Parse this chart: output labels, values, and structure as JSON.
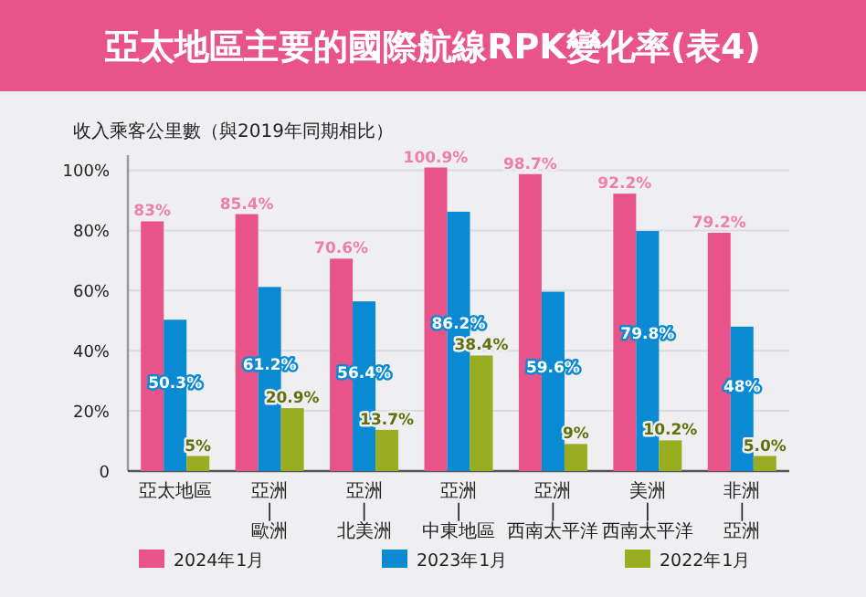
{
  "chart_data": {
    "type": "bar",
    "title": "亞太地區主要的國際航線RPK變化率(表4)",
    "ylabel": "收入乘客公里數（與2019年同期相比）",
    "categories": [
      "亞太地區",
      "亞洲\n|\n歐洲",
      "亞洲\n|\n北美洲",
      "亞洲\n|\n中東地區",
      "亞洲\n|\n西南太平洋",
      "美洲\n|\n西南太平洋",
      "非洲\n|\n亞洲"
    ],
    "series": [
      {
        "name": "2024年1月",
        "color": "#e8548a",
        "values": [
          83,
          85.4,
          70.6,
          100.9,
          98.7,
          92.2,
          79.2
        ],
        "value_labels": [
          "83%",
          "85.4%",
          "70.6%",
          "100.9%",
          "98.7%",
          "92.2%",
          "79.2%"
        ]
      },
      {
        "name": "2023年1月",
        "color": "#0a8ad2",
        "values": [
          50.3,
          61.2,
          56.4,
          86.2,
          59.6,
          79.8,
          48
        ],
        "value_labels": [
          "50.3%",
          "61.2%",
          "56.4%",
          "86.2%",
          "59.6%",
          "79.8%",
          "48%"
        ]
      },
      {
        "name": "2022年1月",
        "color": "#98ad1f",
        "values": [
          5,
          20.9,
          13.7,
          38.4,
          9,
          10.2,
          5
        ],
        "value_labels": [
          "5%",
          "20.9%",
          "13.7%",
          "38.4%",
          "9%",
          "10.2%",
          "5.0%"
        ]
      }
    ],
    "ylim": [
      0,
      105
    ],
    "yticks": [
      {
        "value": 0,
        "label": "0"
      },
      {
        "value": 20,
        "label": "20%"
      },
      {
        "value": 40,
        "label": "40%"
      },
      {
        "value": 60,
        "label": "60%"
      },
      {
        "value": 80,
        "label": "80%"
      },
      {
        "value": 100,
        "label": "100%"
      }
    ],
    "grid": "y",
    "legend": "bottom"
  }
}
